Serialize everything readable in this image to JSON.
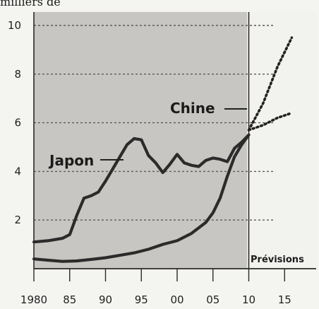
{
  "header": {
    "cropped_text": "milliers de"
  },
  "chart_data": {
    "type": "line",
    "title": "",
    "xlabel": "",
    "ylabel": "",
    "x_tick_labels": [
      "1980",
      "85",
      "90",
      "95",
      "00",
      "05",
      "10",
      "15"
    ],
    "x_tick_values": [
      1980,
      1985,
      1990,
      1995,
      2000,
      2005,
      2010,
      2015
    ],
    "y_tick_values": [
      2,
      4,
      6,
      8,
      10
    ],
    "xlim": [
      1980,
      2016
    ],
    "ylim": [
      0,
      10.5
    ],
    "forecast_start": 2010,
    "forecast_label": "Prévisions",
    "series": [
      {
        "name": "Japon",
        "color": "#2b2b2b",
        "x": [
          1980,
          1982,
          1984,
          1985,
          1986,
          1987,
          1988,
          1989,
          1990,
          1991,
          1992,
          1993,
          1994,
          1995,
          1996,
          1997,
          1998,
          1999,
          2000,
          2001,
          2002,
          2003,
          2004,
          2005,
          2006,
          2007,
          2008,
          2009,
          2010
        ],
        "y": [
          1.1,
          1.15,
          1.25,
          1.4,
          2.2,
          2.9,
          3.0,
          3.15,
          3.6,
          4.1,
          4.6,
          5.1,
          5.35,
          5.3,
          4.65,
          4.35,
          3.95,
          4.3,
          4.7,
          4.35,
          4.25,
          4.2,
          4.45,
          4.55,
          4.5,
          4.4,
          4.95,
          5.2,
          5.5
        ]
      },
      {
        "name": "Chine",
        "color": "#2b2b2b",
        "x": [
          1980,
          1982,
          1984,
          1986,
          1988,
          1990,
          1992,
          1994,
          1996,
          1998,
          2000,
          2002,
          2004,
          2005,
          2006,
          2007,
          2008,
          2009,
          2010
        ],
        "y": [
          0.4,
          0.35,
          0.3,
          0.32,
          0.38,
          0.45,
          0.55,
          0.65,
          0.8,
          1.0,
          1.15,
          1.45,
          1.9,
          2.3,
          2.9,
          3.8,
          4.6,
          5.1,
          5.5
        ]
      }
    ],
    "forecasts": [
      {
        "name": "forecast-high",
        "x": [
          2010,
          2012,
          2014,
          2016
        ],
        "y": [
          5.7,
          6.8,
          8.3,
          9.5
        ]
      },
      {
        "name": "forecast-low",
        "x": [
          2010,
          2012,
          2014,
          2016
        ],
        "y": [
          5.7,
          5.9,
          6.2,
          6.4
        ]
      }
    ]
  }
}
